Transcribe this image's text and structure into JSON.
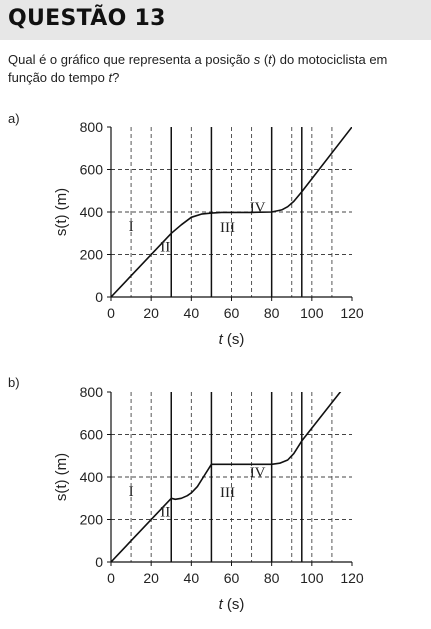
{
  "header": {
    "title": "QUESTÃO 13"
  },
  "question": {
    "part1": "Qual é o gráfico que representa a posição ",
    "var_s": "s",
    "part2": " (",
    "var_t1": "t",
    "part3": ") do motociclista em função do tempo ",
    "var_t2": "t",
    "part4": "?"
  },
  "chart_data": [
    {
      "option_label": "a)",
      "type": "line",
      "xlabel_var": "t",
      "xlabel_unit": " (s)",
      "ylabel": "s(t) (m)",
      "xlim": [
        0,
        120
      ],
      "ylim": [
        0,
        800
      ],
      "xticks": [
        0,
        20,
        40,
        60,
        80,
        100,
        120
      ],
      "yticks": [
        0,
        200,
        400,
        600,
        800
      ],
      "dashed_gridlines_x": [
        10,
        20,
        40,
        60,
        70,
        90,
        100,
        110
      ],
      "dashed_gridlines_y": [
        200,
        400,
        600
      ],
      "solid_verticals_x": [
        30,
        50,
        80,
        95
      ],
      "regions": [
        {
          "label": "I",
          "x": 10,
          "y": 310
        },
        {
          "label": "II",
          "x": 27,
          "y": 215
        },
        {
          "label": "III",
          "x": 58,
          "y": 305
        },
        {
          "label": "IV",
          "x": 73,
          "y": 400
        }
      ],
      "curve": [
        [
          0,
          0
        ],
        [
          30,
          300
        ],
        [
          35,
          340
        ],
        [
          40,
          375
        ],
        [
          45,
          390
        ],
        [
          50,
          395
        ],
        [
          55,
          398
        ],
        [
          60,
          398
        ],
        [
          70,
          398
        ],
        [
          80,
          400
        ],
        [
          85,
          410
        ],
        [
          88,
          425
        ],
        [
          91,
          450
        ],
        [
          95,
          495
        ],
        [
          120,
          800
        ]
      ]
    },
    {
      "option_label": "b)",
      "type": "line",
      "xlabel_var": "t",
      "xlabel_unit": " (s)",
      "ylabel": "s(t) (m)",
      "xlim": [
        0,
        120
      ],
      "ylim": [
        0,
        800
      ],
      "xticks": [
        0,
        20,
        40,
        60,
        80,
        100,
        120
      ],
      "yticks": [
        0,
        200,
        400,
        600,
        800
      ],
      "dashed_gridlines_x": [
        10,
        20,
        40,
        60,
        70,
        90,
        100,
        110
      ],
      "dashed_gridlines_y": [
        200,
        400,
        600
      ],
      "solid_verticals_x": [
        30,
        50,
        80,
        95
      ],
      "regions": [
        {
          "label": "I",
          "x": 10,
          "y": 310
        },
        {
          "label": "II",
          "x": 27,
          "y": 215
        },
        {
          "label": "III",
          "x": 58,
          "y": 305
        },
        {
          "label": "IV",
          "x": 73,
          "y": 400
        }
      ],
      "curve": [
        [
          0,
          0
        ],
        [
          30,
          300
        ],
        [
          32,
          295
        ],
        [
          35,
          300
        ],
        [
          38,
          312
        ],
        [
          40,
          325
        ],
        [
          43,
          355
        ],
        [
          46,
          400
        ],
        [
          50,
          460
        ],
        [
          55,
          460
        ],
        [
          80,
          460
        ],
        [
          84,
          465
        ],
        [
          88,
          480
        ],
        [
          91,
          510
        ],
        [
          95,
          570
        ],
        [
          120,
          870
        ]
      ]
    }
  ]
}
